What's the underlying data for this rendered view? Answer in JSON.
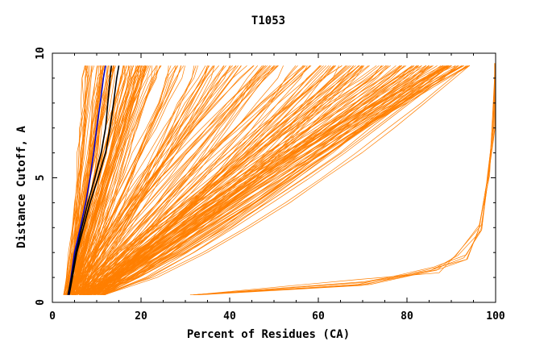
{
  "chart_data": {
    "type": "line",
    "title": "T1053",
    "xlabel": "Percent of Residues (CA)",
    "ylabel": "Distance Cutoff, A",
    "xlim": [
      0,
      100
    ],
    "ylim": [
      0,
      10
    ],
    "x_ticks": [
      "0",
      "20",
      "40",
      "60",
      "80",
      "100"
    ],
    "y_ticks": [
      "0",
      "5",
      "10"
    ],
    "grid": false,
    "legend": "none",
    "colors": {
      "orange": "#ff7f00",
      "black": "#000000",
      "blue": "#0000cc",
      "axes": "#000000"
    },
    "y_levels": [
      0.3,
      1,
      2,
      3,
      4,
      5,
      6,
      7,
      8,
      9,
      9.5
    ],
    "highlight_series": [
      {
        "color": "#000000",
        "x": [
          3.8,
          4.5,
          5.5,
          7.0,
          8.5,
          10.3,
          12.0,
          13.0,
          13.8,
          14.5,
          15.0
        ]
      },
      {
        "color": "#0000cc",
        "x": [
          3.6,
          4.2,
          5.0,
          6.3,
          7.5,
          8.5,
          9.3,
          10.0,
          10.8,
          11.5,
          12.0
        ]
      },
      {
        "color": "#000000",
        "x": [
          3.5,
          4.3,
          5.3,
          6.6,
          8.0,
          9.6,
          11.0,
          12.0,
          12.5,
          13.0,
          13.3
        ]
      }
    ],
    "orange_groups": {
      "steep": {
        "count": 70,
        "x0_range": [
          2.5,
          5.5
        ],
        "x_top_range": [
          7,
          22
        ]
      },
      "mid": {
        "count": 70,
        "x0_range": [
          3,
          8
        ],
        "x_top_range": [
          20,
          55
        ]
      },
      "shallow": {
        "count": 120,
        "x0_range": [
          4,
          12
        ],
        "x_top_range": [
          55,
          95
        ]
      },
      "flat": {
        "count": 7,
        "y": [
          0.3,
          0.8,
          1.3,
          1.8,
          3.0,
          5.0,
          7.0,
          9.6
        ],
        "x": [
          32,
          70,
          86,
          92,
          96.5,
          98.5,
          99.5,
          100
        ]
      }
    }
  }
}
